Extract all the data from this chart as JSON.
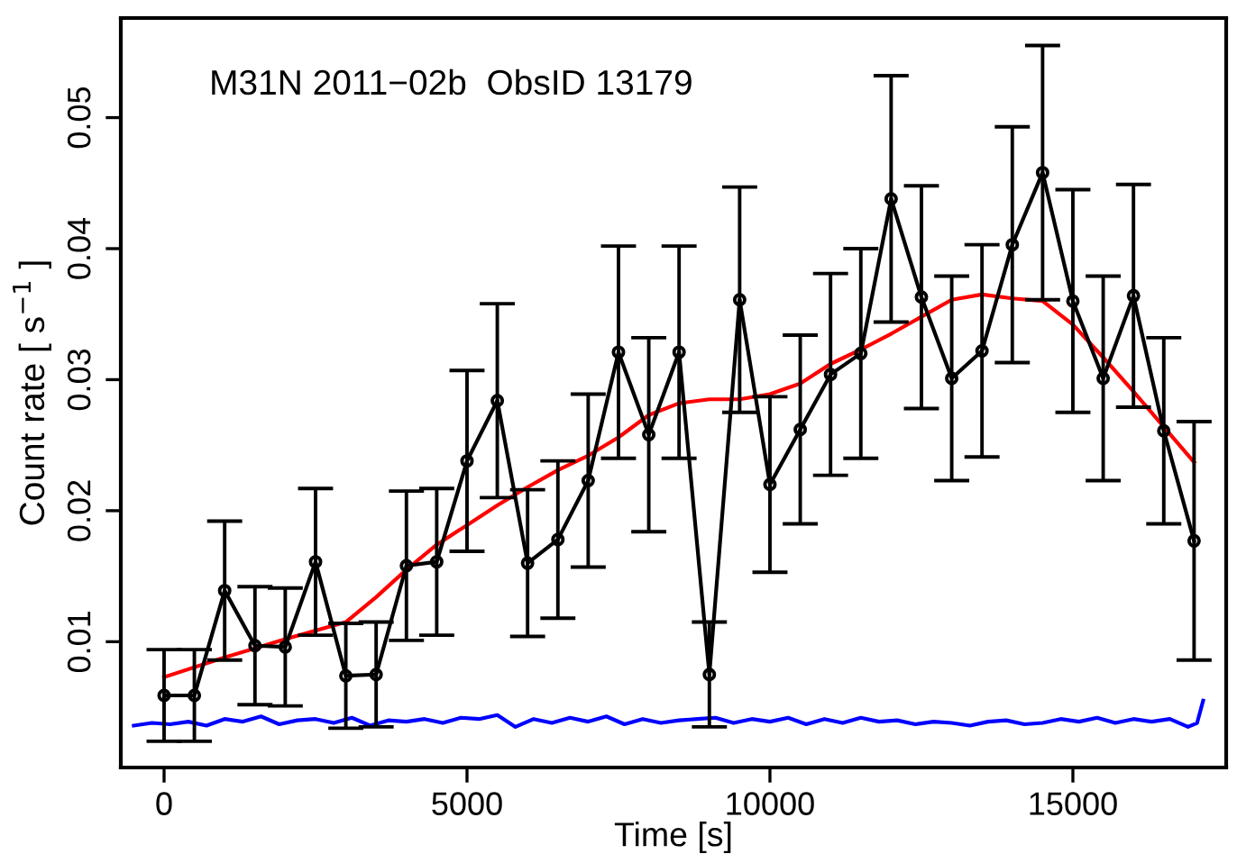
{
  "chart_data": {
    "type": "line",
    "xlabel": "Time [s]",
    "ylabel": "Count rate [ s$^{−1}$ ]",
    "annotations": [
      "M31N 2011−02b  ObsID 13179"
    ],
    "xlim": [
      -714,
      17530
    ],
    "ylim": [
      0.0004,
      0.0576
    ],
    "xticks": [
      0,
      5000,
      10000,
      15000
    ],
    "yticks": [
      0.01,
      0.02,
      0.03,
      0.04,
      0.05
    ],
    "grid": false,
    "legend": false,
    "series": [
      {
        "color": "#0000ff",
        "marker": "none",
        "x": [
          -500,
          -200,
          100,
          400,
          700,
          1000,
          1300,
          1600,
          1900,
          2200,
          2500,
          2800,
          3100,
          3400,
          3700,
          4000,
          4300,
          4600,
          4900,
          5200,
          5500,
          5800,
          6100,
          6400,
          6700,
          7000,
          7300,
          7600,
          7900,
          8200,
          8500,
          8800,
          9100,
          9400,
          9700,
          10000,
          10300,
          10600,
          10900,
          11200,
          11500,
          11800,
          12100,
          12400,
          12700,
          13000,
          13300,
          13600,
          13900,
          14200,
          14500,
          14800,
          15100,
          15400,
          15700,
          16000,
          16300,
          16600,
          16900,
          17050,
          17150
        ],
        "values": [
          0.0036,
          0.0038,
          0.0037,
          0.0039,
          0.0036,
          0.0041,
          0.0039,
          0.0043,
          0.0037,
          0.004,
          0.0041,
          0.0038,
          0.0042,
          0.0036,
          0.004,
          0.0039,
          0.0041,
          0.0038,
          0.0042,
          0.0041,
          0.0044,
          0.0035,
          0.0041,
          0.0038,
          0.0042,
          0.0039,
          0.0043,
          0.0037,
          0.0041,
          0.0038,
          0.004,
          0.0041,
          0.0042,
          0.0038,
          0.0041,
          0.0039,
          0.0042,
          0.0037,
          0.0041,
          0.0038,
          0.0042,
          0.0039,
          0.004,
          0.0037,
          0.0039,
          0.0038,
          0.0036,
          0.0039,
          0.004,
          0.0037,
          0.0038,
          0.0041,
          0.0039,
          0.0042,
          0.0038,
          0.0041,
          0.0039,
          0.0041,
          0.0035,
          0.0038,
          0.0055
        ]
      },
      {
        "color": "#000000",
        "marker": "circle",
        "x": [
          0,
          500,
          1000,
          1500,
          2000,
          2500,
          3000,
          3500,
          4000,
          4500,
          5000,
          5500,
          6000,
          6500,
          7000,
          7500,
          8000,
          8500,
          9000,
          9500,
          10000,
          10500,
          11000,
          11500,
          12000,
          12500,
          13000,
          13500,
          14000,
          14500,
          15000,
          15500,
          16000,
          16500,
          17000
        ],
        "values": [
          0.0059,
          0.0059,
          0.0139,
          0.0097,
          0.0096,
          0.0161,
          0.0074,
          0.0075,
          0.0158,
          0.0161,
          0.0238,
          0.0284,
          0.016,
          0.0178,
          0.0223,
          0.0321,
          0.0258,
          0.0321,
          0.0075,
          0.0361,
          0.022,
          0.0262,
          0.0304,
          0.032,
          0.0438,
          0.0363,
          0.0301,
          0.0322,
          0.0403,
          0.0458,
          0.036,
          0.0301,
          0.0364,
          0.0261,
          0.0177
        ],
        "errors": [
          0.0035,
          0.0035,
          0.0053,
          0.0045,
          0.0045,
          0.0056,
          0.004,
          0.004,
          0.0057,
          0.0056,
          0.0069,
          0.0074,
          0.0056,
          0.006,
          0.0066,
          0.0081,
          0.0074,
          0.0081,
          0.004,
          0.0086,
          0.0067,
          0.0072,
          0.0077,
          0.008,
          0.0094,
          0.0085,
          0.0078,
          0.0081,
          0.009,
          0.0097,
          0.0085,
          0.0078,
          0.0085,
          0.0071,
          0.0091
        ]
      },
      {
        "color": "#ff0000",
        "marker": "none",
        "x": [
          0,
          1000,
          2000,
          3000,
          3500,
          4000,
          4500,
          5000,
          5500,
          6000,
          6500,
          7000,
          7500,
          8000,
          8500,
          9000,
          9500,
          10000,
          10500,
          11000,
          11500,
          12000,
          12500,
          13000,
          13500,
          14000,
          14500,
          15000,
          15500,
          16000,
          16500,
          17000
        ],
        "values": [
          0.0073,
          0.0088,
          0.0102,
          0.0115,
          0.0134,
          0.0155,
          0.0174,
          0.0189,
          0.0204,
          0.0218,
          0.0231,
          0.0242,
          0.0256,
          0.0273,
          0.0282,
          0.0285,
          0.0285,
          0.0289,
          0.0297,
          0.0312,
          0.0323,
          0.0335,
          0.0348,
          0.0361,
          0.0365,
          0.0362,
          0.036,
          0.0342,
          0.0317,
          0.0291,
          0.0264,
          0.0237
        ]
      }
    ]
  }
}
